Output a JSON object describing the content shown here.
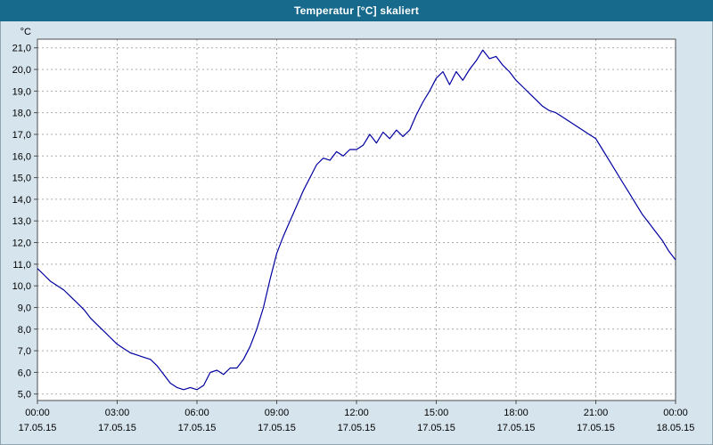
{
  "title": "Temperatur [°C] skaliert",
  "colors": {
    "titlebar_bg": "#176a8c",
    "titlebar_text": "#ffffff",
    "page_bg": "#d6e4ee",
    "plot_bg": "#ffffff",
    "grid": "#ababab",
    "plot_border": "#4d4d4d",
    "axis_text": "#000000",
    "series_line": "#0000a0"
  },
  "chart_data": {
    "type": "line",
    "title": "Temperatur [°C] skaliert",
    "unit_label": "°C",
    "grid": true,
    "legend": "none",
    "xlim": [
      0,
      24
    ],
    "ylim": [
      4.7,
      21.4
    ],
    "y_ticks": {
      "values": [
        21,
        20,
        19,
        18,
        17,
        16,
        15,
        14,
        13,
        12,
        11,
        10,
        9,
        8,
        7,
        6,
        5
      ],
      "labels": [
        "21,0",
        "20,0",
        "19,0",
        "18,0",
        "17,0",
        "16,0",
        "15,0",
        "14,0",
        "13,0",
        "12,0",
        "11,0",
        "10,0",
        "9,0",
        "8,0",
        "7,0",
        "6,0",
        "5,0"
      ]
    },
    "x_ticks": {
      "hours": [
        0,
        3,
        6,
        9,
        12,
        15,
        18,
        21,
        24
      ],
      "time_labels": [
        "00:00",
        "03:00",
        "06:00",
        "09:00",
        "12:00",
        "15:00",
        "18:00",
        "21:00",
        "00:00"
      ],
      "date_labels": [
        "17.05.15",
        "17.05.15",
        "17.05.15",
        "17.05.15",
        "17.05.15",
        "17.05.15",
        "17.05.15",
        "17.05.15",
        "18.05.15"
      ]
    },
    "series": [
      {
        "name": "Temperatur",
        "color": "#0000a0",
        "x": [
          0.0,
          0.25,
          0.5,
          0.75,
          1.0,
          1.25,
          1.5,
          1.75,
          2.0,
          2.25,
          2.5,
          2.75,
          3.0,
          3.25,
          3.5,
          3.75,
          4.0,
          4.25,
          4.5,
          4.75,
          5.0,
          5.25,
          5.5,
          5.75,
          6.0,
          6.25,
          6.5,
          6.75,
          7.0,
          7.25,
          7.5,
          7.75,
          8.0,
          8.25,
          8.5,
          8.75,
          9.0,
          9.25,
          9.5,
          9.75,
          10.0,
          10.25,
          10.5,
          10.75,
          11.0,
          11.25,
          11.5,
          11.75,
          12.0,
          12.25,
          12.5,
          12.75,
          13.0,
          13.25,
          13.5,
          13.75,
          14.0,
          14.25,
          14.5,
          14.75,
          15.0,
          15.25,
          15.5,
          15.75,
          16.0,
          16.25,
          16.5,
          16.75,
          17.0,
          17.25,
          17.5,
          17.75,
          18.0,
          18.25,
          18.5,
          18.75,
          19.0,
          19.25,
          19.5,
          19.75,
          20.0,
          20.25,
          20.5,
          20.75,
          21.0,
          21.25,
          21.5,
          21.75,
          22.0,
          22.25,
          22.5,
          22.75,
          23.0,
          23.25,
          23.5,
          23.75,
          24.0
        ],
        "y": [
          10.8,
          10.5,
          10.2,
          10.0,
          9.8,
          9.5,
          9.2,
          8.9,
          8.5,
          8.2,
          7.9,
          7.6,
          7.3,
          7.1,
          6.9,
          6.8,
          6.7,
          6.6,
          6.3,
          5.9,
          5.5,
          5.3,
          5.2,
          5.3,
          5.2,
          5.4,
          6.0,
          6.1,
          5.9,
          6.2,
          6.2,
          6.6,
          7.2,
          8.0,
          9.0,
          10.3,
          11.5,
          12.3,
          13.0,
          13.7,
          14.4,
          15.0,
          15.6,
          15.9,
          15.8,
          16.2,
          16.0,
          16.3,
          16.3,
          16.5,
          17.0,
          16.6,
          17.1,
          16.8,
          17.2,
          16.9,
          17.2,
          17.9,
          18.5,
          19.0,
          19.6,
          19.9,
          19.3,
          19.9,
          19.5,
          20.0,
          20.4,
          20.9,
          20.5,
          20.6,
          20.2,
          19.9,
          19.5,
          19.2,
          18.9,
          18.6,
          18.3,
          18.1,
          18.0,
          17.8,
          17.6,
          17.4,
          17.2,
          17.0,
          16.8,
          16.3,
          15.8,
          15.3,
          14.8,
          14.3,
          13.8,
          13.3,
          12.9,
          12.5,
          12.1,
          11.6,
          11.2
        ]
      }
    ]
  }
}
